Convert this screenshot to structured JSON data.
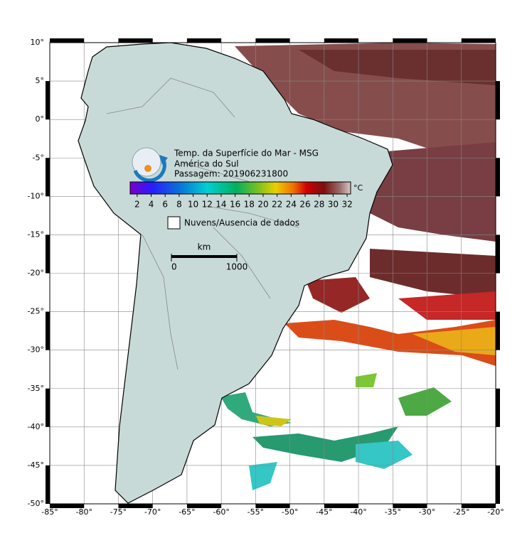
{
  "map": {
    "title": "Temp. da Superfície do Mar - MSG",
    "subtitle": "América do Sul",
    "pass": "Passagem: 201906231800",
    "xlim": [
      -85,
      -20
    ],
    "ylim": [
      -50,
      10
    ],
    "lon_ticks": [
      {
        "value": -85,
        "label": "-85°"
      },
      {
        "value": -80,
        "label": "-80°"
      },
      {
        "value": -75,
        "label": "-75°"
      },
      {
        "value": -70,
        "label": "-70°"
      },
      {
        "value": -65,
        "label": "-65°"
      },
      {
        "value": -60,
        "label": "-60°"
      },
      {
        "value": -55,
        "label": "-55°"
      },
      {
        "value": -50,
        "label": "-50°"
      },
      {
        "value": -45,
        "label": "-45°"
      },
      {
        "value": -40,
        "label": "-40°"
      },
      {
        "value": -35,
        "label": "-35°"
      },
      {
        "value": -30,
        "label": "-30°"
      },
      {
        "value": -25,
        "label": "-25°"
      },
      {
        "value": -20,
        "label": "-20°"
      }
    ],
    "lat_ticks": [
      {
        "value": 10,
        "label": "10°"
      },
      {
        "value": 5,
        "label": "5°"
      },
      {
        "value": 0,
        "label": "0°"
      },
      {
        "value": -5,
        "label": "-5°"
      },
      {
        "value": -10,
        "label": "-10°"
      },
      {
        "value": -15,
        "label": "-15°"
      },
      {
        "value": -20,
        "label": "-20°"
      },
      {
        "value": -25,
        "label": "-25°"
      },
      {
        "value": -30,
        "label": "-30°"
      },
      {
        "value": -35,
        "label": "-35°"
      },
      {
        "value": -40,
        "label": "-40°"
      },
      {
        "value": -45,
        "label": "-45°"
      },
      {
        "value": -50,
        "label": "-50°"
      }
    ],
    "colorbar": {
      "unit": "°C",
      "clim": [
        1,
        32.5
      ],
      "ticks": [
        2,
        4,
        6,
        8,
        10,
        12,
        14,
        16,
        18,
        20,
        22,
        24,
        26,
        28,
        30,
        32
      ]
    },
    "legend": "Nuvens/Ausencia de dados",
    "scale": {
      "unit": "km",
      "ticks": [
        0,
        1000
      ]
    }
  }
}
